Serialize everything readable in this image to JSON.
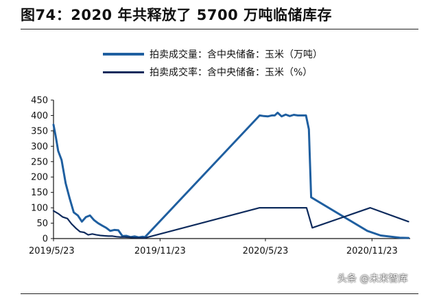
{
  "title": "图74：2020 年共释放了 5700 万吨临储库存",
  "watermark": "头条 @未来智库",
  "colors": {
    "volume": "#1f5fa0",
    "rate": "#0d2a5c",
    "axis": "#111111"
  },
  "chart_data": {
    "type": "line",
    "legend_position": "top",
    "grid": false,
    "y_ticks": [
      "0",
      "50",
      "100",
      "150",
      "200",
      "250",
      "300",
      "350",
      "400",
      "450"
    ],
    "x_ticks": [
      {
        "label": "2019/5/23",
        "date": "2019-05-23"
      },
      {
        "label": "2019/11/23",
        "date": "2019-11-23"
      },
      {
        "label": "2020/5/23",
        "date": "2020-05-23"
      },
      {
        "label": "2020/11/23",
        "date": "2020-11-23"
      }
    ],
    "xlim": [
      "2019-05-23",
      "2021-01-28"
    ],
    "ylim": [
      0,
      450
    ],
    "series": [
      {
        "name": "拍卖成交量：含中央储备：玉米（万吨）",
        "key": "volume",
        "points": [
          [
            "2019-05-23",
            370
          ],
          [
            "2019-05-27",
            330
          ],
          [
            "2019-05-31",
            285
          ],
          [
            "2019-06-06",
            255
          ],
          [
            "2019-06-13",
            180
          ],
          [
            "2019-06-20",
            130
          ],
          [
            "2019-06-27",
            85
          ],
          [
            "2019-07-04",
            75
          ],
          [
            "2019-07-11",
            55
          ],
          [
            "2019-07-18",
            70
          ],
          [
            "2019-07-25",
            75
          ],
          [
            "2019-08-01",
            60
          ],
          [
            "2019-08-08",
            50
          ],
          [
            "2019-08-15",
            42
          ],
          [
            "2019-08-22",
            35
          ],
          [
            "2019-08-29",
            25
          ],
          [
            "2019-09-05",
            28
          ],
          [
            "2019-09-12",
            27
          ],
          [
            "2019-09-19",
            8
          ],
          [
            "2019-09-26",
            9
          ],
          [
            "2019-10-03",
            5
          ],
          [
            "2019-10-10",
            7
          ],
          [
            "2019-10-17",
            4
          ],
          [
            "2019-10-24",
            6
          ],
          [
            "2019-10-28",
            5
          ],
          [
            "2020-05-13",
            400
          ],
          [
            "2020-05-20",
            398
          ],
          [
            "2020-05-27",
            397
          ],
          [
            "2020-06-03",
            400
          ],
          [
            "2020-06-08",
            400
          ],
          [
            "2020-06-13",
            409
          ],
          [
            "2020-06-20",
            397
          ],
          [
            "2020-06-27",
            403
          ],
          [
            "2020-07-04",
            398
          ],
          [
            "2020-07-11",
            402
          ],
          [
            "2020-07-18",
            400
          ],
          [
            "2020-07-25",
            400
          ],
          [
            "2020-08-01",
            400
          ],
          [
            "2020-08-06",
            355
          ],
          [
            "2020-08-10",
            134
          ],
          [
            "2020-11-15",
            25
          ],
          [
            "2020-12-08",
            10
          ],
          [
            "2021-01-10",
            3
          ],
          [
            "2021-01-25",
            2
          ]
        ]
      },
      {
        "name": "拍卖成交率：含中央储备：玉米（%）",
        "key": "rate",
        "points": [
          [
            "2019-05-23",
            90
          ],
          [
            "2019-06-01",
            80
          ],
          [
            "2019-06-08",
            70
          ],
          [
            "2019-06-16",
            65
          ],
          [
            "2019-06-23",
            48
          ],
          [
            "2019-07-01",
            33
          ],
          [
            "2019-07-08",
            22
          ],
          [
            "2019-07-15",
            20
          ],
          [
            "2019-07-22",
            12
          ],
          [
            "2019-07-29",
            15
          ],
          [
            "2019-08-05",
            12
          ],
          [
            "2019-08-12",
            10
          ],
          [
            "2019-08-19",
            9
          ],
          [
            "2019-08-26",
            8
          ],
          [
            "2019-09-02",
            8
          ],
          [
            "2019-09-09",
            6
          ],
          [
            "2019-09-16",
            5
          ],
          [
            "2019-09-23",
            5
          ],
          [
            "2019-10-01",
            4
          ],
          [
            "2019-10-08",
            3
          ],
          [
            "2019-10-28",
            2
          ],
          [
            "2020-05-13",
            100
          ],
          [
            "2020-08-02",
            100
          ],
          [
            "2020-08-12",
            35
          ],
          [
            "2020-11-20",
            100
          ],
          [
            "2021-01-25",
            55
          ]
        ]
      }
    ]
  }
}
